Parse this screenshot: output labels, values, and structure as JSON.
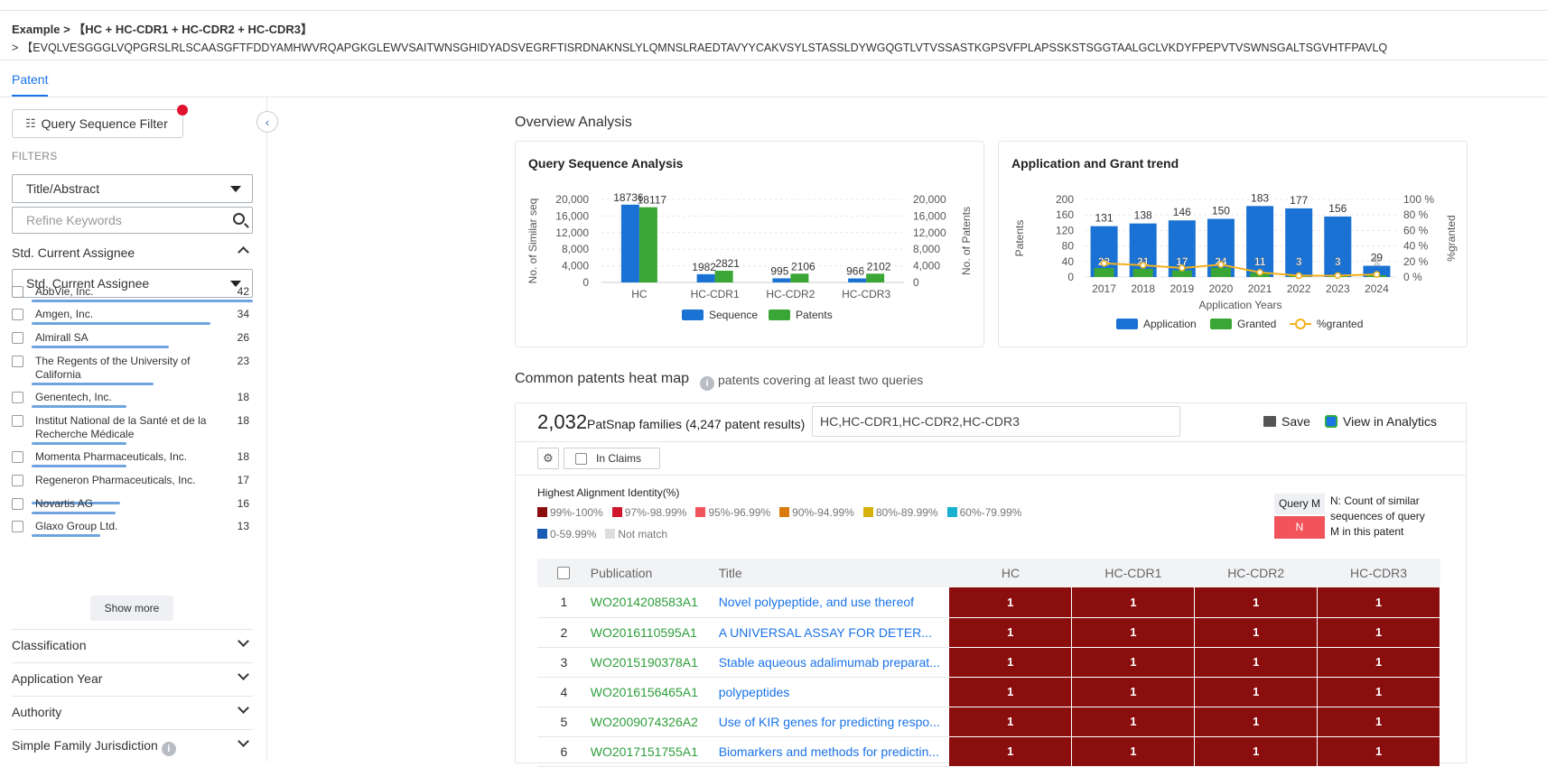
{
  "header": {
    "breadcrumb": "Example > 【HC + HC-CDR1 + HC-CDR2 + HC-CDR3】",
    "sequence": "> 【EVQLVESGGGLVQPGRSLRLSCAASGFTFDDYAMHWVRQAPGKGLEWVSAITWNSGHIDYADSVEGRFTISRDNAKNSLYLQMNSLRAEDTAVYYCAKVSYLSTASSLDYWGQGTLVTVSSASTKGPSVFPLAPSSKSTSGGTAALGCLVKDYFPEPVTVSWNSGALTSGVHTFPAVLQ"
  },
  "tabs": [
    {
      "label": "Patent",
      "active": true
    }
  ],
  "sidebar": {
    "query_filter_label": "Query Sequence Filter",
    "filters_heading": "FILTERS",
    "field_select": "Title/Abstract",
    "refine_placeholder": "Refine Keywords",
    "assignee_heading": "Std. Current Assignee",
    "assignee_select": "Std. Current Assignee",
    "assignees": [
      {
        "name": "AbbVie, Inc.",
        "count": "42",
        "frac": 1.0
      },
      {
        "name": "Amgen, Inc.",
        "count": "34",
        "frac": 0.81
      },
      {
        "name": "Almirall SA",
        "count": "26",
        "frac": 0.62
      },
      {
        "name": "The Regents of the University of California",
        "count": "23",
        "frac": 0.55
      },
      {
        "name": "Genentech, Inc.",
        "count": "18",
        "frac": 0.43
      },
      {
        "name": "Institut National de la Santé et de la Recherche Médicale",
        "count": "18",
        "frac": 0.43
      },
      {
        "name": "Momenta Pharmaceuticals, Inc.",
        "count": "18",
        "frac": 0.43
      },
      {
        "name": "Regeneron Pharmaceuticals, Inc.",
        "count": "17",
        "frac": 0.4
      },
      {
        "name": "Novartis AG",
        "count": "16",
        "frac": 0.38
      },
      {
        "name": "Glaxo Group Ltd.",
        "count": "13",
        "frac": 0.31
      }
    ],
    "show_more": "Show more",
    "sections": [
      "Classification",
      "Application Year",
      "Authority",
      "Simple Family Jurisdiction"
    ]
  },
  "main": {
    "overview_title": "Overview Analysis",
    "heatmap_title": "Common patents heat map",
    "heatmap_subtitle": "patents covering at least two queries",
    "families_count": "2,032",
    "families_label": "PatSnap families (4,247 patent results)",
    "query_text": "HC,HC-CDR1,HC-CDR2,HC-CDR3",
    "save_label": "Save",
    "analytics_label": "View in Analytics",
    "in_claims_label": "In Claims",
    "identity_title": "Highest Alignment Identity(%)",
    "identity_legend": [
      {
        "label": "99%-100%",
        "color": "#8b0e0e"
      },
      {
        "label": "97%-98.99%",
        "color": "#d0162b"
      },
      {
        "label": "95%-96.99%",
        "color": "#f2545b"
      },
      {
        "label": "90%-94.99%",
        "color": "#d97a0c"
      },
      {
        "label": "80%-89.99%",
        "color": "#d6b00b"
      },
      {
        "label": "60%-79.99%",
        "color": "#1ab0d0"
      },
      {
        "label": "0-59.99%",
        "color": "#1a5bb5"
      },
      {
        "label": "Not match",
        "color": "#dddddd"
      }
    ],
    "query_m_label": "Query M",
    "query_n_label": "N",
    "query_desc": "N: Count of similar sequences of query M in this patent",
    "table_headers": [
      "Publication",
      "Title",
      "HC",
      "HC-CDR1",
      "HC-CDR2",
      "HC-CDR3"
    ],
    "rows": [
      {
        "num": "1",
        "pub": "WO2014208583A1",
        "title": "Novel polypeptide, and use thereof",
        "hc": "1",
        "cdr1": "1",
        "cdr2": "1",
        "cdr3": "1"
      },
      {
        "num": "2",
        "pub": "WO2016110595A1",
        "title": "A UNIVERSAL ASSAY FOR DETER...",
        "hc": "1",
        "cdr1": "1",
        "cdr2": "1",
        "cdr3": "1"
      },
      {
        "num": "3",
        "pub": "WO2015190378A1",
        "title": "Stable aqueous adalimumab preparat...",
        "hc": "1",
        "cdr1": "1",
        "cdr2": "1",
        "cdr3": "1"
      },
      {
        "num": "4",
        "pub": "WO2016156465A1",
        "title": "polypeptides",
        "hc": "1",
        "cdr1": "1",
        "cdr2": "1",
        "cdr3": "1"
      },
      {
        "num": "5",
        "pub": "WO2009074326A2",
        "title": "Use of KIR genes for predicting respo...",
        "hc": "1",
        "cdr1": "1",
        "cdr2": "1",
        "cdr3": "1"
      },
      {
        "num": "6",
        "pub": "WO2017151755A1",
        "title": "Biomarkers and methods for predictin...",
        "hc": "1",
        "cdr1": "1",
        "cdr2": "1",
        "cdr3": "1"
      }
    ]
  },
  "chart_data": [
    {
      "type": "bar",
      "title": "Query Sequence Analysis",
      "categories": [
        "HC",
        "HC-CDR1",
        "HC-CDR2",
        "HC-CDR3"
      ],
      "series": [
        {
          "name": "Sequence",
          "values": [
            18736,
            1982,
            995,
            966
          ],
          "labels": [
            "18736",
            "1982",
            "995",
            "966"
          ],
          "color": "#1a73d4"
        },
        {
          "name": "Patents",
          "values": [
            18117,
            2821,
            2106,
            2102
          ],
          "labels": [
            "18117",
            "2821",
            "2106",
            "2102"
          ],
          "color": "#3aa635"
        }
      ],
      "ylabel": "No. of Similar seq",
      "y2label": "No. of Patents",
      "ylim": [
        0,
        20000
      ],
      "yticks": [
        "0",
        "4,000",
        "8,000",
        "12,000",
        "16,000",
        "20,000"
      ],
      "ytick_values": [
        0,
        4000,
        8000,
        12000,
        16000,
        20000
      ],
      "legend_position": "bottom"
    },
    {
      "type": "bar",
      "title": "Application and Grant trend",
      "categories": [
        "2017",
        "2018",
        "2019",
        "2020",
        "2021",
        "2022",
        "2023",
        "2024"
      ],
      "series": [
        {
          "name": "Application",
          "values": [
            131,
            138,
            146,
            150,
            183,
            177,
            156,
            29
          ],
          "color": "#1a73d4"
        },
        {
          "name": "Granted",
          "values": [
            23,
            21,
            17,
            24,
            11,
            3,
            3,
            1
          ],
          "color": "#3aa635"
        },
        {
          "name": "%granted",
          "values": [
            17.6,
            15.2,
            11.6,
            16.0,
            6.0,
            1.7,
            1.9,
            3.4
          ],
          "color": "#f2b01e"
        }
      ],
      "xlabel": "Application Years",
      "ylabel": "Patents",
      "y2label": "%granted",
      "ylim": [
        0,
        200
      ],
      "yticks": [
        "0",
        "40",
        "80",
        "120",
        "160",
        "200"
      ],
      "ytick_values": [
        0,
        40,
        80,
        120,
        160,
        200
      ],
      "y2ticks": [
        "0 %",
        "20 %",
        "40 %",
        "60 %",
        "80 %",
        "100 %"
      ],
      "legend_position": "bottom"
    }
  ]
}
